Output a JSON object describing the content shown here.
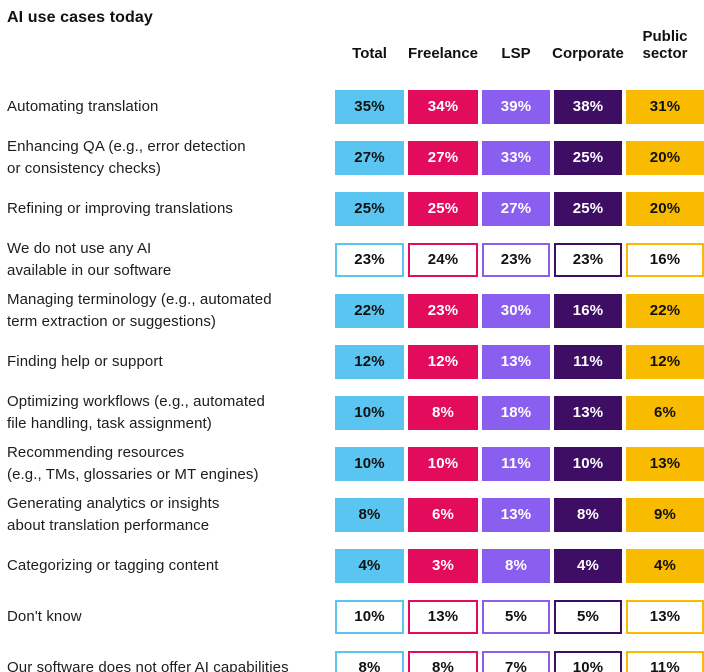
{
  "title": "AI use cases today",
  "columns": [
    {
      "label": "Total",
      "color": "#59C5F0",
      "text_color": "#111111"
    },
    {
      "label": "Freelance",
      "color": "#E30B5C",
      "text_color": "#FFFFFF"
    },
    {
      "label": "LSP",
      "color": "#8A5FF0",
      "text_color": "#FFFFFF"
    },
    {
      "label": "Corporate",
      "color": "#3D0E63",
      "text_color": "#FFFFFF"
    },
    {
      "label": "Public sector",
      "color": "#F9BB00",
      "text_color": "#111111"
    }
  ],
  "outlined_text_color": "#111111",
  "outlined_background": "#FFFFFF",
  "rows": [
    {
      "label": "Automating translation",
      "style": "filled",
      "values": [
        "35%",
        "34%",
        "39%",
        "38%",
        "31%"
      ]
    },
    {
      "label": "Enhancing QA (e.g., error detection\nor consistency checks)",
      "style": "filled",
      "values": [
        "27%",
        "27%",
        "33%",
        "25%",
        "20%"
      ]
    },
    {
      "label": "Refining or improving translations",
      "style": "filled",
      "values": [
        "25%",
        "25%",
        "27%",
        "25%",
        "20%"
      ]
    },
    {
      "label": "We do not use any AI\navailable in our software",
      "style": "outlined",
      "values": [
        "23%",
        "24%",
        "23%",
        "23%",
        "16%"
      ]
    },
    {
      "label": "Managing terminology (e.g., automated\nterm extraction or suggestions)",
      "style": "filled",
      "values": [
        "22%",
        "23%",
        "30%",
        "16%",
        "22%"
      ]
    },
    {
      "label": "Finding help or support",
      "style": "filled",
      "values": [
        "12%",
        "12%",
        "13%",
        "11%",
        "12%"
      ]
    },
    {
      "label": "Optimizing workflows (e.g., automated\nfile handling, task assignment)",
      "style": "filled",
      "values": [
        "10%",
        "8%",
        "18%",
        "13%",
        "6%"
      ]
    },
    {
      "label": "Recommending resources\n(e.g., TMs, glossaries or MT engines)",
      "style": "filled",
      "values": [
        "10%",
        "10%",
        "11%",
        "10%",
        "13%"
      ]
    },
    {
      "label": "Generating analytics or insights\nabout translation performance",
      "style": "filled",
      "values": [
        "8%",
        "6%",
        "13%",
        "8%",
        "9%"
      ]
    },
    {
      "label": "Categorizing or tagging content",
      "style": "filled",
      "values": [
        "4%",
        "3%",
        "8%",
        "4%",
        "4%"
      ]
    },
    {
      "label": "Don't know",
      "style": "outlined",
      "values": [
        "10%",
        "13%",
        "5%",
        "5%",
        "13%"
      ]
    },
    {
      "label": "Our software does not offer AI capabilities",
      "style": "outlined",
      "values": [
        "8%",
        "8%",
        "7%",
        "10%",
        "11%"
      ]
    }
  ],
  "chart_data": {
    "type": "table",
    "title": "AI use cases today",
    "unit": "%",
    "categories": [
      "Automating translation",
      "Enhancing QA (e.g., error detection or consistency checks)",
      "Refining or improving translations",
      "We do not use any AI available in our software",
      "Managing terminology (e.g., automated term extraction or suggestions)",
      "Finding help or support",
      "Optimizing workflows (e.g., automated file handling, task assignment)",
      "Recommending resources (e.g., TMs, glossaries or MT engines)",
      "Generating analytics or insights about translation performance",
      "Categorizing or tagging content",
      "Don't know",
      "Our software does not offer AI capabilities"
    ],
    "series": [
      {
        "name": "Total",
        "values": [
          35,
          27,
          25,
          23,
          22,
          12,
          10,
          10,
          8,
          4,
          10,
          8
        ]
      },
      {
        "name": "Freelance",
        "values": [
          34,
          27,
          25,
          24,
          23,
          12,
          8,
          10,
          6,
          3,
          13,
          8
        ]
      },
      {
        "name": "LSP",
        "values": [
          39,
          33,
          27,
          23,
          30,
          13,
          18,
          11,
          13,
          8,
          5,
          7
        ]
      },
      {
        "name": "Corporate",
        "values": [
          38,
          25,
          25,
          23,
          16,
          11,
          13,
          10,
          8,
          4,
          5,
          10
        ]
      },
      {
        "name": "Public sector",
        "values": [
          31,
          20,
          20,
          16,
          22,
          12,
          6,
          13,
          9,
          4,
          13,
          11
        ]
      }
    ],
    "outlined_rows": [
      "We do not use any AI available in our software",
      "Don't know",
      "Our software does not offer AI capabilities"
    ],
    "legend_position": "top",
    "grid": false
  }
}
